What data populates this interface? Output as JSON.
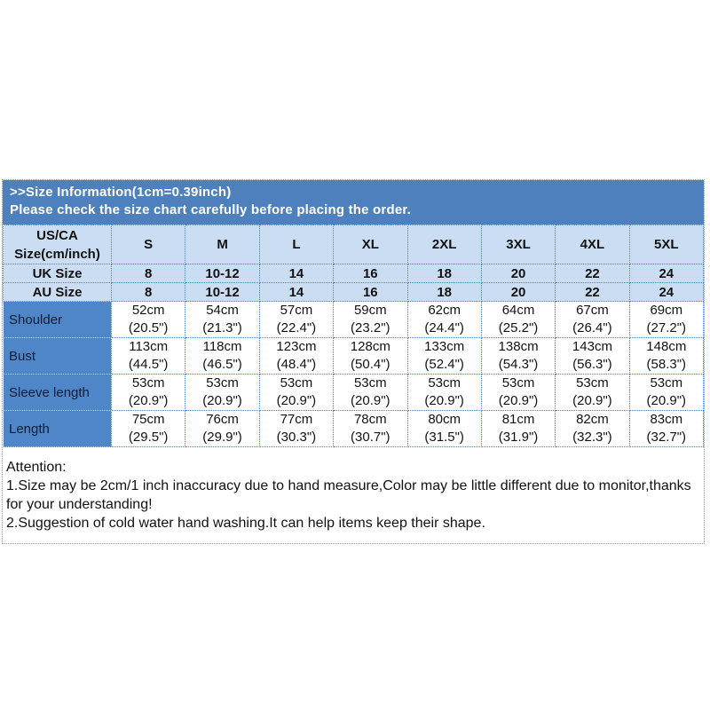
{
  "banner": {
    "title": ">>Size Information(1cm=0.39inch)",
    "subtitle": "Please check the size chart carefully before placing the order."
  },
  "size_chart": {
    "corner_header": "US/CA\nSize(cm/inch)",
    "columns": [
      "S",
      "M",
      "L",
      "XL",
      "2XL",
      "3XL",
      "4XL",
      "5XL"
    ],
    "size_rows": [
      {
        "label": "UK Size",
        "values": [
          "8",
          "10-12",
          "14",
          "16",
          "18",
          "20",
          "22",
          "24"
        ]
      },
      {
        "label": "AU Size",
        "values": [
          "8",
          "10-12",
          "14",
          "16",
          "18",
          "20",
          "22",
          "24"
        ]
      }
    ],
    "measurement_rows": [
      {
        "label": "Shoulder",
        "values": [
          "52cm\n(20.5\")",
          "54cm\n(21.3\")",
          "57cm\n(22.4\")",
          "59cm\n(23.2\")",
          "62cm\n(24.4\")",
          "64cm\n(25.2\")",
          "67cm\n(26.4\")",
          "69cm\n(27.2\")"
        ]
      },
      {
        "label": "Bust",
        "values": [
          "113cm\n(44.5\")",
          "118cm\n(46.5\")",
          "123cm\n(48.4\")",
          "128cm\n(50.4\")",
          "133cm\n(52.4\")",
          "138cm\n(54.3\")",
          "143cm\n(56.3\")",
          "148cm\n(58.3\")"
        ]
      },
      {
        "label": "Sleeve length",
        "values": [
          "53cm\n(20.9\")",
          "53cm\n(20.9\")",
          "53cm\n(20.9\")",
          "53cm\n(20.9\")",
          "53cm\n(20.9\")",
          "53cm\n(20.9\")",
          "53cm\n(20.9\")",
          "53cm\n(20.9\")"
        ]
      },
      {
        "label": "Length",
        "values": [
          "75cm\n(29.5\")",
          "76cm\n(29.9\")",
          "77cm\n(30.3\")",
          "78cm\n(30.7\")",
          "80cm\n(31.5\")",
          "81cm\n(31.9\")",
          "82cm\n(32.3\")",
          "83cm\n(32.7\")"
        ]
      }
    ]
  },
  "attention": {
    "heading": "Attention:",
    "notes": [
      "1.Size may be 2cm/1 inch inaccuracy due to hand measure,Color may be little different due to monitor,thanks for your understanding!",
      "2.Suggestion of cold water hand washing.It can help items keep their shape."
    ]
  },
  "colors": {
    "banner_bg": "#4d80bc",
    "banner_text": "#ffffff",
    "header_row_bg": "#cbddf2",
    "label_column_bg": "#4e86c8",
    "cell_border": "#4e81bd",
    "outer_border": "#8f989f",
    "table_text": "#121212"
  }
}
